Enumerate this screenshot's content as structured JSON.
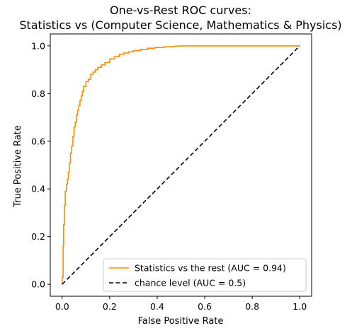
{
  "chart_data": {
    "type": "line",
    "title_line1": "One-vs-Rest ROC curves:",
    "title_line2": "Statistics vs (Computer Science, Mathematics & Physics)",
    "xlabel": "False Positive Rate",
    "ylabel": "True Positive Rate",
    "xlim": [
      -0.05,
      1.05
    ],
    "ylim": [
      -0.05,
      1.05
    ],
    "xticks": [
      "0.0",
      "0.2",
      "0.4",
      "0.6",
      "0.8",
      "1.0"
    ],
    "yticks": [
      "0.0",
      "0.2",
      "0.4",
      "0.6",
      "0.8",
      "1.0"
    ],
    "grid": false,
    "legend_position": "lower-right",
    "series": [
      {
        "name": "Statistics vs the rest (AUC = 0.94)",
        "color": "#ff8c00",
        "style": "solid",
        "x": [
          0.0,
          0.0,
          0.004,
          0.004,
          0.006,
          0.006,
          0.01,
          0.01,
          0.013,
          0.013,
          0.018,
          0.018,
          0.022,
          0.022,
          0.026,
          0.026,
          0.03,
          0.03,
          0.035,
          0.035,
          0.04,
          0.04,
          0.045,
          0.045,
          0.05,
          0.05,
          0.055,
          0.055,
          0.06,
          0.06,
          0.065,
          0.065,
          0.07,
          0.07,
          0.075,
          0.075,
          0.08,
          0.08,
          0.085,
          0.085,
          0.09,
          0.09,
          0.1,
          0.1,
          0.11,
          0.11,
          0.12,
          0.12,
          0.13,
          0.13,
          0.14,
          0.14,
          0.15,
          0.15,
          0.165,
          0.165,
          0.18,
          0.18,
          0.2,
          0.2,
          0.22,
          0.22,
          0.24,
          0.24,
          0.26,
          0.26,
          0.28,
          0.28,
          0.3,
          0.3,
          0.33,
          0.33,
          0.36,
          0.36,
          0.39,
          0.39,
          0.43,
          0.43,
          0.47,
          0.47,
          0.5,
          1.0
        ],
        "y": [
          0.0,
          0.03,
          0.03,
          0.16,
          0.16,
          0.25,
          0.25,
          0.33,
          0.33,
          0.39,
          0.39,
          0.42,
          0.42,
          0.44,
          0.44,
          0.47,
          0.47,
          0.51,
          0.51,
          0.55,
          0.55,
          0.58,
          0.58,
          0.62,
          0.62,
          0.66,
          0.66,
          0.68,
          0.68,
          0.71,
          0.71,
          0.73,
          0.73,
          0.75,
          0.75,
          0.77,
          0.77,
          0.79,
          0.79,
          0.81,
          0.81,
          0.83,
          0.83,
          0.85,
          0.85,
          0.86,
          0.86,
          0.88,
          0.88,
          0.89,
          0.89,
          0.9,
          0.9,
          0.91,
          0.91,
          0.92,
          0.92,
          0.93,
          0.93,
          0.945,
          0.945,
          0.955,
          0.955,
          0.965,
          0.965,
          0.97,
          0.97,
          0.975,
          0.975,
          0.98,
          0.98,
          0.985,
          0.985,
          0.99,
          0.99,
          0.993,
          0.993,
          0.996,
          0.996,
          0.998,
          1.0,
          1.0
        ]
      },
      {
        "name": "chance level (AUC = 0.5)",
        "color": "#000000",
        "style": "dashed",
        "x": [
          0.0,
          1.0
        ],
        "y": [
          0.0,
          1.0
        ]
      }
    ]
  }
}
